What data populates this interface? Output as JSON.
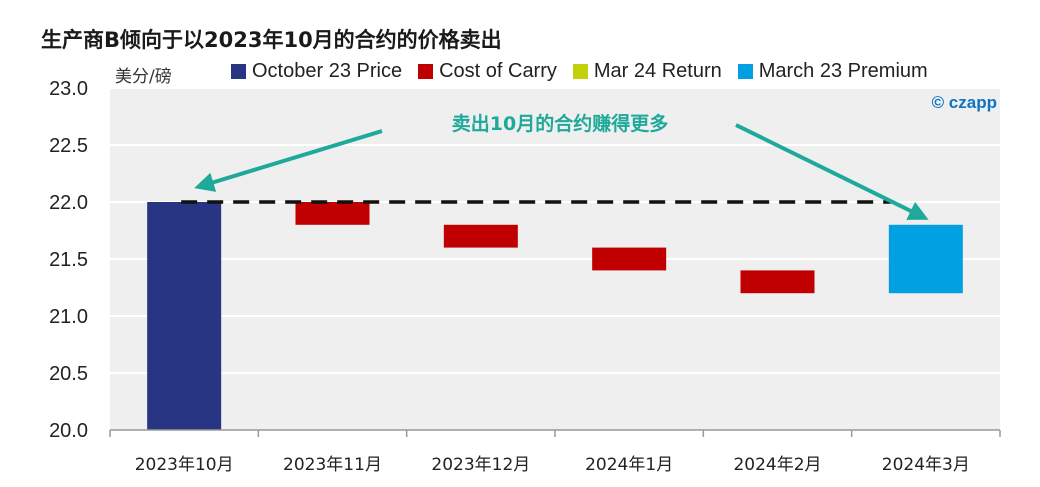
{
  "chart_data": {
    "type": "bar",
    "subtype": "waterfall",
    "title": "生产商B倾向于以2023年10月的合约的价格卖出",
    "ylabel": "美分/磅",
    "xlabel": "",
    "ylim": [
      20.0,
      23.0
    ],
    "yticks": [
      "20.0",
      "20.5",
      "21.0",
      "21.5",
      "22.0",
      "22.5",
      "23.0"
    ],
    "grid": true,
    "legend_position": "top",
    "categories": [
      "2023年10月",
      "2023年11月",
      "2023年12月",
      "2024年1月",
      "2024年2月",
      "2024年3月"
    ],
    "series": [
      {
        "name": "October 23 Price",
        "color": "#283582",
        "ranges": [
          [
            20.0,
            22.0
          ],
          null,
          null,
          null,
          null,
          null
        ]
      },
      {
        "name": "Cost of Carry",
        "color": "#c00000",
        "ranges": [
          null,
          [
            21.8,
            22.0
          ],
          [
            21.6,
            21.8
          ],
          [
            21.4,
            21.6
          ],
          [
            21.2,
            21.4
          ],
          null
        ]
      },
      {
        "name": "Mar 24 Return",
        "color": "#c2d10b",
        "ranges": [
          null,
          null,
          null,
          null,
          null,
          null
        ]
      },
      {
        "name": "March 23 Premium",
        "color": "#00a0e2",
        "ranges": [
          null,
          null,
          null,
          null,
          null,
          [
            21.2,
            21.8
          ]
        ]
      }
    ],
    "reference_line": {
      "value": 22.0,
      "style": "dashed",
      "color": "#111111"
    },
    "annotation": {
      "text": "卖出10月的合约赚得更多",
      "color": "#1fa99a"
    },
    "brand": "© czapp"
  }
}
